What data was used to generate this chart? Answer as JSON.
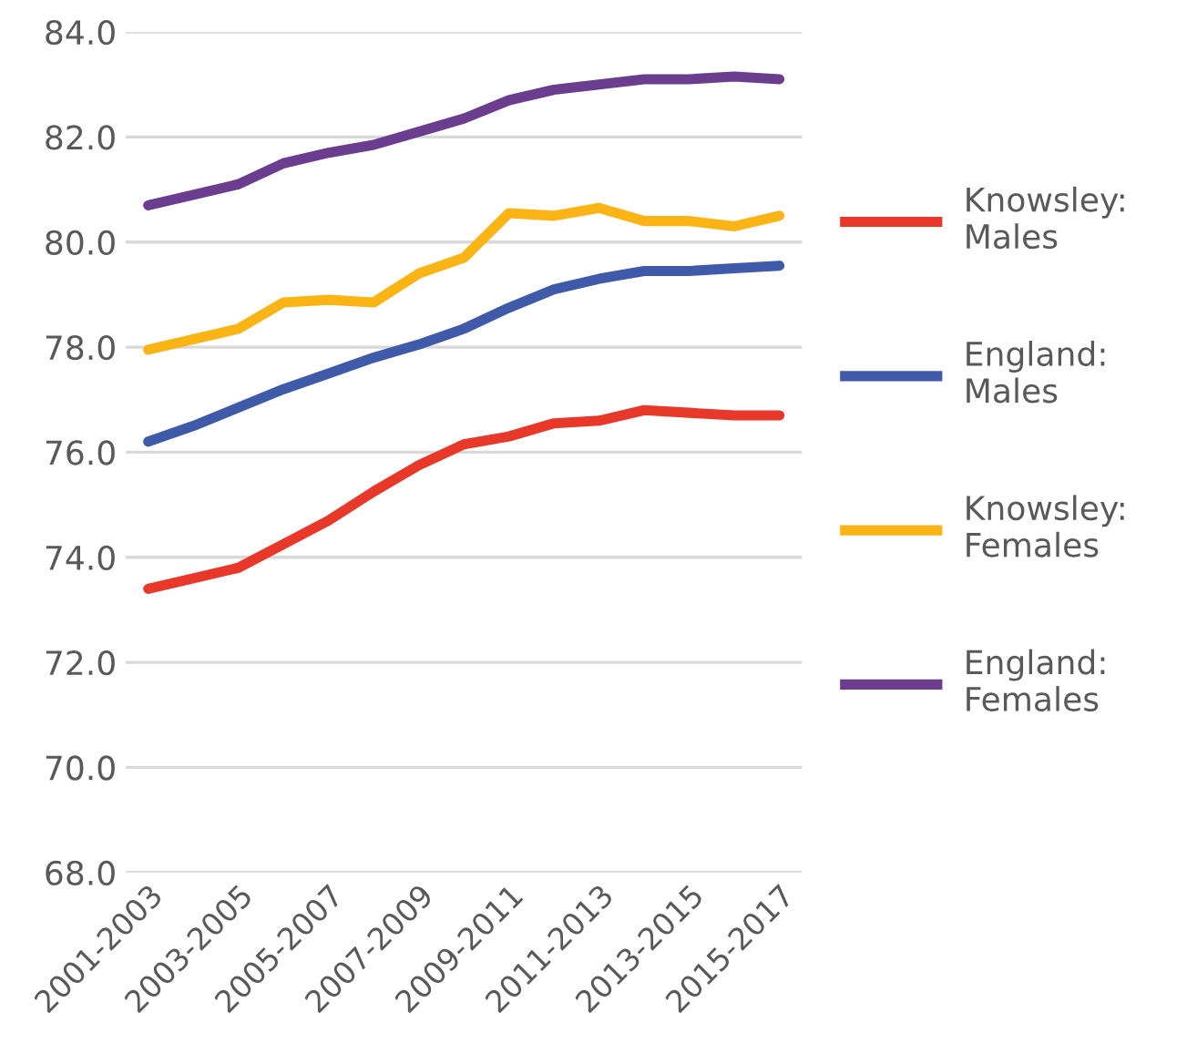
{
  "chart_data": {
    "type": "line",
    "categories": [
      "2001-2003",
      null,
      "2003-2005",
      null,
      "2005-2007",
      null,
      "2007-2009",
      null,
      "2009-2011",
      null,
      "2011-2013",
      null,
      "2013-2015",
      null,
      "2015-2017"
    ],
    "series": [
      {
        "name": "Knowsley: Males",
        "color": "#e8382a",
        "values": [
          73.4,
          73.6,
          73.8,
          74.25,
          74.7,
          75.25,
          75.75,
          76.15,
          76.3,
          76.55,
          76.6,
          76.8,
          76.75,
          76.7,
          76.7
        ]
      },
      {
        "name": "England: Males",
        "color": "#3f5aa8",
        "values": [
          76.2,
          76.5,
          76.85,
          77.2,
          77.5,
          77.8,
          78.05,
          78.35,
          78.75,
          79.1,
          79.3,
          79.45,
          79.45,
          79.5,
          79.55
        ]
      },
      {
        "name": "Knowsley: Females",
        "color": "#fbb416",
        "values": [
          77.95,
          78.15,
          78.35,
          78.85,
          78.9,
          78.85,
          79.4,
          79.7,
          80.55,
          80.5,
          80.65,
          80.4,
          80.4,
          80.3,
          80.5
        ]
      },
      {
        "name": "England: Females",
        "color": "#6a3d8f",
        "values": [
          80.7,
          80.9,
          81.1,
          81.5,
          81.7,
          81.85,
          82.1,
          82.35,
          82.7,
          82.9,
          83.0,
          83.1,
          83.1,
          83.15,
          83.1
        ]
      }
    ],
    "ylim": [
      68,
      84
    ],
    "yticks": [
      {
        "value": 68,
        "label": "68.0"
      },
      {
        "value": 70,
        "label": "70.0"
      },
      {
        "value": 72,
        "label": "72.0"
      },
      {
        "value": 74,
        "label": "74.0"
      },
      {
        "value": 76,
        "label": "76.0"
      },
      {
        "value": 78,
        "label": "78.0"
      },
      {
        "value": 80,
        "label": "80.0"
      },
      {
        "value": 82,
        "label": "82.0"
      },
      {
        "value": 84,
        "label": "84.0"
      }
    ],
    "grid": "y",
    "legend": "right",
    "marker": "none",
    "line_style": "solid"
  }
}
